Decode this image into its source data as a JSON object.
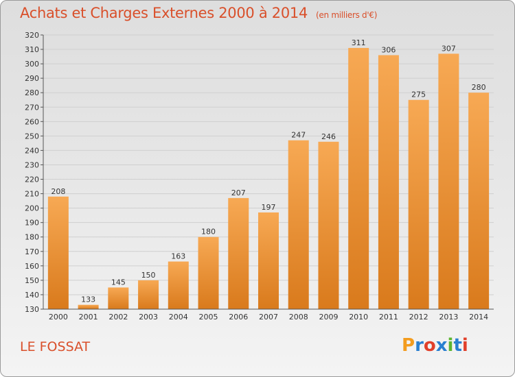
{
  "header": {
    "title": "Achats et Charges Externes 2000 à 2014",
    "unit": "(en milliers d'€)"
  },
  "footer": {
    "town": "LE FOSSAT",
    "logo": {
      "letters": [
        "P",
        "r",
        "o",
        "x",
        "i",
        "t",
        "i"
      ],
      "colors": [
        "#f39c1e",
        "#2a7fd0",
        "#e13f2a",
        "#2a7fd0",
        "#5cb531",
        "#2a7fd0",
        "#e13f2a"
      ]
    }
  },
  "chart_data": {
    "type": "bar",
    "title": "Achats et Charges Externes 2000 à 2014",
    "subtitle": "(en milliers d'€)",
    "categories": [
      "2000",
      "2001",
      "2002",
      "2003",
      "2004",
      "2005",
      "2006",
      "2007",
      "2008",
      "2009",
      "2010",
      "2011",
      "2012",
      "2013",
      "2014"
    ],
    "values": [
      208,
      133,
      145,
      150,
      163,
      180,
      207,
      197,
      247,
      246,
      311,
      306,
      275,
      307,
      280
    ],
    "ylim": [
      130,
      320
    ],
    "yticks": [
      130,
      140,
      150,
      160,
      170,
      180,
      190,
      200,
      210,
      220,
      230,
      240,
      250,
      260,
      270,
      280,
      290,
      300,
      310,
      320
    ],
    "grid": true,
    "legend": "none",
    "colors": {
      "bar_light": "#f7a954",
      "bar_dark": "#d97a1c",
      "grid": "#cfcfcf",
      "accent": "#d94f2a"
    }
  }
}
